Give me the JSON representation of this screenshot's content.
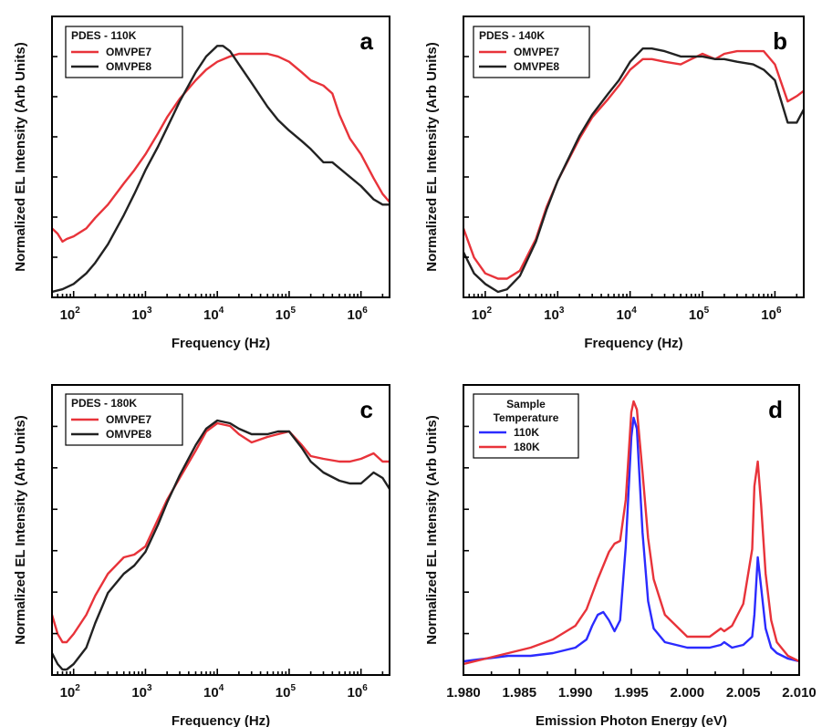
{
  "chart_data": [
    {
      "type": "line",
      "panel": "a",
      "xscale": "log",
      "xlim": [
        50,
        2500000
      ],
      "ylim": [
        0,
        1
      ],
      "xlabel": "Frequency (Hz)",
      "ylabel": "Normalized EL Intensity (Arb Units)",
      "xticks": [
        {
          "value": 100,
          "base": "10",
          "exp": "2"
        },
        {
          "value": 1000,
          "base": "10",
          "exp": "3"
        },
        {
          "value": 10000,
          "base": "10",
          "exp": "4"
        },
        {
          "value": 100000,
          "base": "10",
          "exp": "5"
        },
        {
          "value": 1000000,
          "base": "10",
          "exp": "6"
        }
      ],
      "grid": false,
      "legend": {
        "title": "PDES - 110K",
        "position": "top-left"
      },
      "series": [
        {
          "name": "OMVPE7",
          "color": "#e8333a",
          "x": [
            50,
            60,
            70,
            80,
            100,
            150,
            200,
            300,
            500,
            700,
            1000,
            1500,
            2000,
            3000,
            5000,
            7000,
            10000,
            15000,
            20000,
            30000,
            50000,
            70000,
            100000,
            150000,
            200000,
            300000,
            400000,
            500000,
            700000,
            1000000,
            1500000,
            2000000,
            2500000
          ],
          "y": [
            0.24,
            0.22,
            0.19,
            0.2,
            0.21,
            0.24,
            0.28,
            0.33,
            0.41,
            0.46,
            0.52,
            0.6,
            0.66,
            0.73,
            0.8,
            0.84,
            0.87,
            0.89,
            0.9,
            0.9,
            0.9,
            0.89,
            0.87,
            0.83,
            0.8,
            0.78,
            0.75,
            0.67,
            0.58,
            0.52,
            0.43,
            0.37,
            0.34
          ]
        },
        {
          "name": "OMVPE8",
          "color": "#222222",
          "x": [
            50,
            70,
            100,
            150,
            200,
            300,
            500,
            700,
            1000,
            1500,
            2000,
            3000,
            5000,
            7000,
            10000,
            12000,
            15000,
            20000,
            30000,
            50000,
            70000,
            100000,
            150000,
            200000,
            300000,
            400000,
            600000,
            1000000,
            1500000,
            2000000,
            2500000
          ],
          "y": [
            0.0,
            0.01,
            0.03,
            0.07,
            0.11,
            0.18,
            0.29,
            0.37,
            0.46,
            0.55,
            0.62,
            0.72,
            0.83,
            0.89,
            0.93,
            0.93,
            0.91,
            0.86,
            0.79,
            0.7,
            0.65,
            0.61,
            0.57,
            0.54,
            0.49,
            0.49,
            0.45,
            0.4,
            0.35,
            0.33,
            0.33
          ]
        }
      ]
    },
    {
      "type": "line",
      "panel": "b",
      "xscale": "log",
      "xlim": [
        50,
        2500000
      ],
      "ylim": [
        0,
        1
      ],
      "xlabel": "Frequency (Hz)",
      "ylabel": "Normalized EL Intensity (Arb Units)",
      "xticks": [
        {
          "value": 100,
          "base": "10",
          "exp": "2"
        },
        {
          "value": 1000,
          "base": "10",
          "exp": "3"
        },
        {
          "value": 10000,
          "base": "10",
          "exp": "4"
        },
        {
          "value": 100000,
          "base": "10",
          "exp": "5"
        },
        {
          "value": 1000000,
          "base": "10",
          "exp": "6"
        }
      ],
      "grid": false,
      "legend": {
        "title": "PDES - 140K",
        "position": "top-left"
      },
      "series": [
        {
          "name": "OMVPE7",
          "color": "#e8333a",
          "x": [
            50,
            70,
            100,
            150,
            200,
            300,
            500,
            700,
            1000,
            2000,
            3000,
            5000,
            7000,
            10000,
            15000,
            20000,
            30000,
            50000,
            70000,
            100000,
            150000,
            200000,
            300000,
            500000,
            700000,
            1000000,
            1500000,
            2000000,
            2500000
          ],
          "y": [
            0.24,
            0.13,
            0.07,
            0.05,
            0.05,
            0.08,
            0.2,
            0.32,
            0.42,
            0.58,
            0.66,
            0.73,
            0.78,
            0.84,
            0.88,
            0.88,
            0.87,
            0.86,
            0.88,
            0.9,
            0.88,
            0.9,
            0.91,
            0.91,
            0.91,
            0.86,
            0.72,
            0.74,
            0.76
          ]
        },
        {
          "name": "OMVPE8",
          "color": "#222222",
          "x": [
            50,
            70,
            100,
            150,
            200,
            300,
            500,
            700,
            1000,
            2000,
            3000,
            5000,
            7000,
            10000,
            15000,
            20000,
            30000,
            50000,
            70000,
            100000,
            150000,
            200000,
            300000,
            500000,
            700000,
            1000000,
            1500000,
            2000000,
            2500000
          ],
          "y": [
            0.15,
            0.07,
            0.03,
            0.0,
            0.01,
            0.06,
            0.19,
            0.31,
            0.42,
            0.59,
            0.67,
            0.75,
            0.8,
            0.87,
            0.92,
            0.92,
            0.91,
            0.89,
            0.89,
            0.89,
            0.88,
            0.88,
            0.87,
            0.86,
            0.84,
            0.8,
            0.64,
            0.64,
            0.69
          ]
        }
      ]
    },
    {
      "type": "line",
      "panel": "c",
      "xscale": "log",
      "xlim": [
        50,
        2500000
      ],
      "ylim": [
        0,
        1
      ],
      "xlabel": "Frequency (Hz)",
      "ylabel": "Normalized EL Intensity (Arb Units)",
      "xticks": [
        {
          "value": 100,
          "base": "10",
          "exp": "2"
        },
        {
          "value": 1000,
          "base": "10",
          "exp": "3"
        },
        {
          "value": 10000,
          "base": "10",
          "exp": "4"
        },
        {
          "value": 100000,
          "base": "10",
          "exp": "5"
        },
        {
          "value": 1000000,
          "base": "10",
          "exp": "6"
        }
      ],
      "grid": false,
      "legend": {
        "title": "PDES - 180K",
        "position": "top-left"
      },
      "series": [
        {
          "name": "OMVPE7",
          "color": "#e8333a",
          "x": [
            50,
            60,
            70,
            80,
            100,
            150,
            200,
            300,
            500,
            700,
            1000,
            1500,
            2000,
            3000,
            5000,
            7000,
            10000,
            15000,
            20000,
            30000,
            50000,
            70000,
            100000,
            150000,
            200000,
            300000,
            500000,
            700000,
            1000000,
            1500000,
            2000000,
            2500000
          ],
          "y": [
            0.2,
            0.13,
            0.1,
            0.1,
            0.13,
            0.2,
            0.27,
            0.35,
            0.41,
            0.42,
            0.45,
            0.55,
            0.62,
            0.7,
            0.8,
            0.87,
            0.9,
            0.89,
            0.86,
            0.83,
            0.85,
            0.86,
            0.87,
            0.82,
            0.78,
            0.77,
            0.76,
            0.76,
            0.77,
            0.79,
            0.76,
            0.76
          ]
        },
        {
          "name": "OMVPE8",
          "color": "#222222",
          "x": [
            50,
            60,
            70,
            80,
            100,
            150,
            200,
            300,
            500,
            700,
            1000,
            1500,
            2000,
            3000,
            5000,
            7000,
            10000,
            15000,
            20000,
            30000,
            50000,
            70000,
            100000,
            150000,
            200000,
            300000,
            500000,
            700000,
            1000000,
            1500000,
            2000000,
            2500000
          ],
          "y": [
            0.06,
            0.02,
            0.0,
            0.0,
            0.02,
            0.08,
            0.17,
            0.28,
            0.35,
            0.38,
            0.43,
            0.53,
            0.61,
            0.71,
            0.82,
            0.88,
            0.91,
            0.9,
            0.88,
            0.86,
            0.86,
            0.87,
            0.87,
            0.81,
            0.76,
            0.72,
            0.69,
            0.68,
            0.68,
            0.72,
            0.7,
            0.66
          ]
        }
      ]
    },
    {
      "type": "line",
      "panel": "d",
      "xscale": "linear",
      "xlim": [
        1.98,
        2.01
      ],
      "ylim": [
        0,
        1
      ],
      "xlabel": "Emission Photon Energy (eV)",
      "ylabel": "Normalized EL Intensity (Arb Units)",
      "xticks": [
        {
          "value": 1.98,
          "label": "1.980"
        },
        {
          "value": 1.985,
          "label": "1.985"
        },
        {
          "value": 1.99,
          "label": "1.990"
        },
        {
          "value": 1.995,
          "label": "1.995"
        },
        {
          "value": 2.0,
          "label": "2.000"
        },
        {
          "value": 2.005,
          "label": "2.005"
        },
        {
          "value": 2.01,
          "label": "2.010"
        }
      ],
      "grid": false,
      "legend": {
        "title_line1": "Sample",
        "title_line2": "Temperature",
        "position": "top-left"
      },
      "series": [
        {
          "name": "110K",
          "color": "#2b2bff",
          "x": [
            1.98,
            1.982,
            1.984,
            1.986,
            1.988,
            1.99,
            1.991,
            1.9915,
            1.992,
            1.9925,
            1.993,
            1.9935,
            1.994,
            1.9945,
            1.995,
            1.9952,
            1.9955,
            1.996,
            1.9965,
            1.997,
            1.998,
            2.0,
            2.002,
            2.003,
            2.0033,
            2.004,
            2.005,
            2.0058,
            2.006,
            2.0063,
            2.0066,
            2.007,
            2.0075,
            2.008,
            2.009,
            2.01
          ],
          "y": [
            0.03,
            0.04,
            0.05,
            0.05,
            0.06,
            0.08,
            0.11,
            0.16,
            0.2,
            0.21,
            0.18,
            0.14,
            0.18,
            0.45,
            0.85,
            0.92,
            0.88,
            0.5,
            0.25,
            0.15,
            0.1,
            0.08,
            0.08,
            0.09,
            0.1,
            0.08,
            0.09,
            0.12,
            0.2,
            0.41,
            0.3,
            0.15,
            0.08,
            0.06,
            0.04,
            0.03
          ]
        },
        {
          "name": "180K",
          "color": "#e8333a",
          "x": [
            1.98,
            1.982,
            1.984,
            1.986,
            1.988,
            1.99,
            1.991,
            1.992,
            1.993,
            1.9935,
            1.994,
            1.9945,
            1.995,
            1.9952,
            1.9955,
            1.996,
            1.9965,
            1.997,
            1.998,
            2.0,
            2.002,
            2.003,
            2.0033,
            2.004,
            2.005,
            2.0058,
            2.006,
            2.0063,
            2.0066,
            2.007,
            2.0075,
            2.008,
            2.009,
            2.01
          ],
          "y": [
            0.02,
            0.04,
            0.06,
            0.08,
            0.11,
            0.16,
            0.22,
            0.33,
            0.43,
            0.46,
            0.47,
            0.62,
            0.94,
            0.98,
            0.95,
            0.72,
            0.48,
            0.33,
            0.2,
            0.12,
            0.12,
            0.15,
            0.14,
            0.16,
            0.24,
            0.44,
            0.67,
            0.76,
            0.6,
            0.35,
            0.18,
            0.1,
            0.05,
            0.03
          ]
        }
      ]
    }
  ]
}
